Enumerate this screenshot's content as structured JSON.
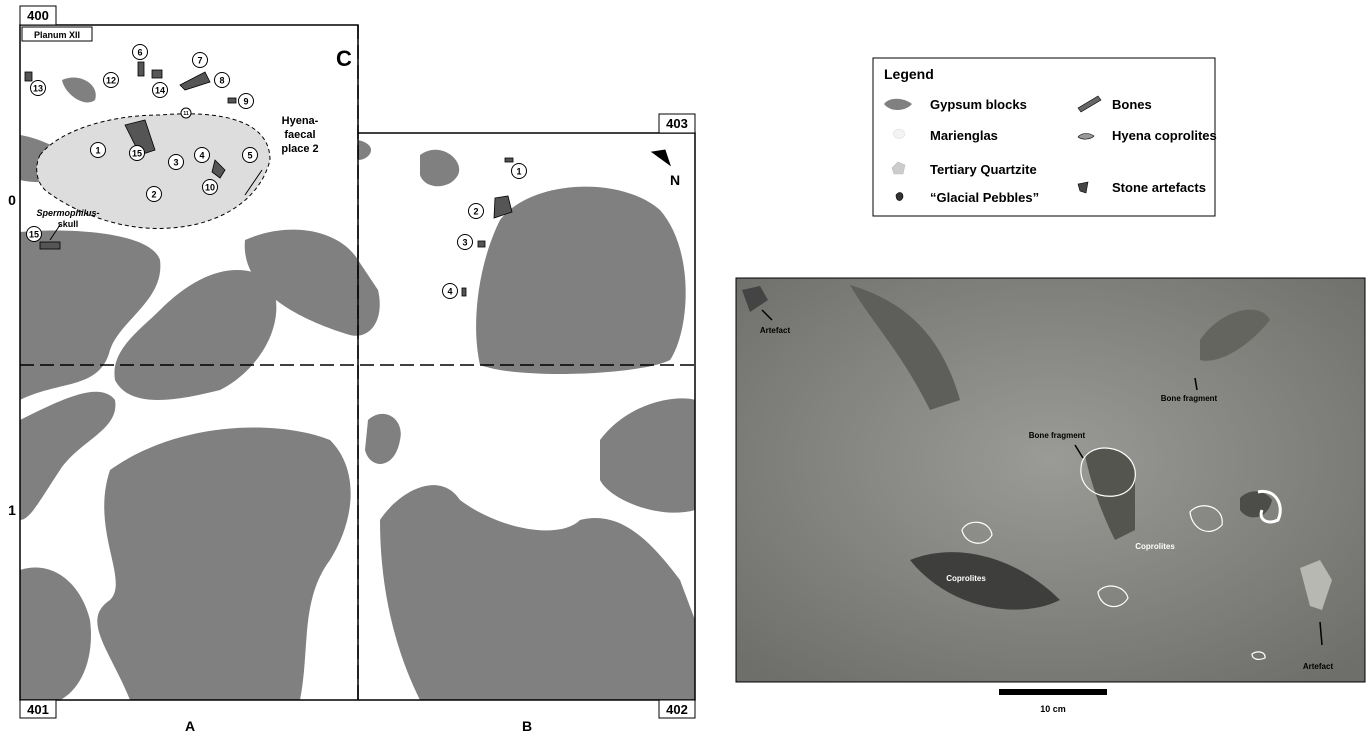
{
  "map": {
    "corners": [
      "400",
      "403",
      "401",
      "402"
    ],
    "columns": [
      "A",
      "B"
    ],
    "rows": [
      "0",
      "1"
    ],
    "sector": "C",
    "planum": "Planum XII",
    "north": "N",
    "hyena_place": [
      "Hyena-",
      "faecal",
      "place 2"
    ],
    "skull": [
      "Spermophilus-",
      "skull"
    ],
    "left_markers": [
      "13",
      "12",
      "6",
      "14",
      "7",
      "8",
      "9",
      "11",
      "1",
      "15",
      "3",
      "4",
      "5",
      "2",
      "10",
      "15"
    ],
    "right_markers": [
      "1",
      "2",
      "3",
      "4"
    ]
  },
  "legend": {
    "title": "Legend",
    "items": [
      "Gypsum blocks",
      "Bones",
      "Marienglas",
      "Hyena coprolites",
      "Tertiary Quartzite",
      "Stone artefacts",
      "“Glacial Pebbles”"
    ]
  },
  "photo": {
    "labels": [
      "Artefact",
      "Bone fragment",
      "Bone fragment",
      "Coprolites",
      "Coprolites",
      "Artefact"
    ],
    "scale": "10 cm"
  }
}
